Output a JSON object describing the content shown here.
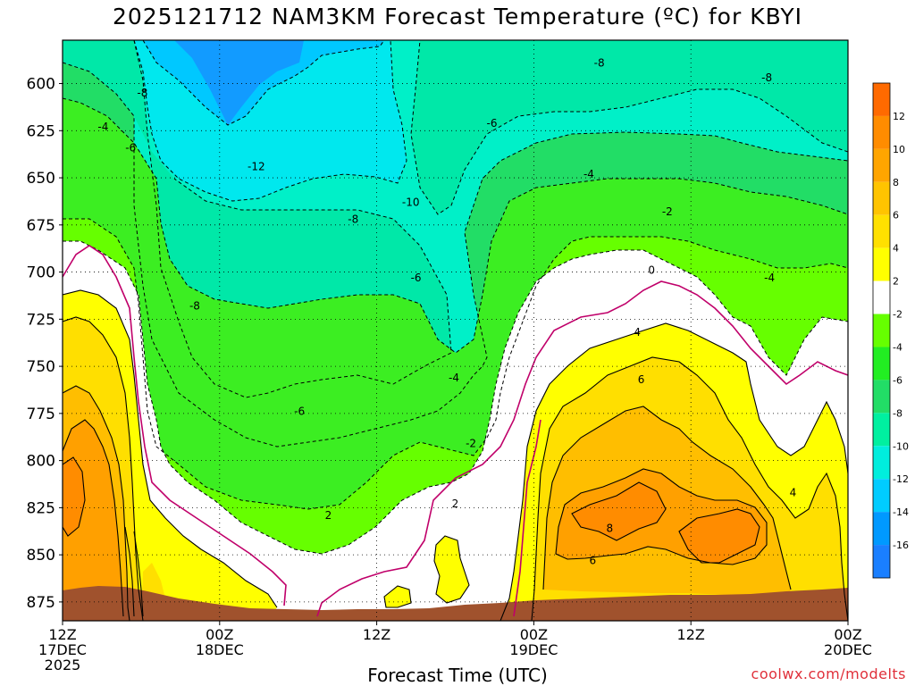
{
  "title": "2025121712 NAM3KM Forecast Temperature (ºC) for KBYI",
  "watermark": "coolwx.com/modelts",
  "chart_data": {
    "type": "heatmap",
    "title": "2025121712 NAM3KM Forecast Temperature (ºC) for KBYI",
    "xlabel": "Forecast Time (UTC)",
    "ylabel": "",
    "x_ticks": [
      {
        "hour": 0,
        "lines": [
          "12Z",
          "17DEC",
          "2025"
        ]
      },
      {
        "hour": 12,
        "lines": [
          "00Z",
          "18DEC"
        ]
      },
      {
        "hour": 24,
        "lines": [
          "12Z"
        ]
      },
      {
        "hour": 36,
        "lines": [
          "00Z",
          "19DEC"
        ]
      },
      {
        "hour": 48,
        "lines": [
          "12Z"
        ]
      },
      {
        "hour": 60,
        "lines": [
          "00Z",
          "20DEC"
        ]
      }
    ],
    "xlim_hours": [
      0,
      60
    ],
    "y_ticks": [
      600,
      625,
      650,
      675,
      700,
      725,
      750,
      775,
      800,
      825,
      850,
      875
    ],
    "ylim_hPa": [
      577,
      885
    ],
    "grid": true,
    "legend": "colorbar-right",
    "colorbar_labels": [
      "12",
      "10",
      "8",
      "6",
      "4",
      "2",
      "-2",
      "-4",
      "-6",
      "-8",
      "-10",
      "-12",
      "-14",
      "-16"
    ],
    "colorbar_colors": [
      "#ff6a00",
      "#ff8c00",
      "#ffa500",
      "#ffc400",
      "#ffe000",
      "#ffff00",
      "#ffffff",
      "#66ff00",
      "#22ee22",
      "#22dd66",
      "#00f0a0",
      "#00eedd",
      "#00ccff",
      "#0099ff",
      "#1a7fff"
    ],
    "ground_color": "#a0522d",
    "contour_labels": [
      {
        "text": "-8",
        "hour": 6.1,
        "p": 605
      },
      {
        "text": "-8",
        "hour": 41.0,
        "p": 589
      },
      {
        "text": "-8",
        "hour": 53.8,
        "p": 597
      },
      {
        "text": "-4",
        "hour": 3.1,
        "p": 623
      },
      {
        "text": "-6",
        "hour": 5.2,
        "p": 634
      },
      {
        "text": "-6",
        "hour": 32.8,
        "p": 621
      },
      {
        "text": "-12",
        "hour": 14.8,
        "p": 644
      },
      {
        "text": "-4",
        "hour": 40.2,
        "p": 648
      },
      {
        "text": "-10",
        "hour": 26.6,
        "p": 663
      },
      {
        "text": "-2",
        "hour": 46.2,
        "p": 668
      },
      {
        "text": "-8",
        "hour": 22.2,
        "p": 672
      },
      {
        "text": "0",
        "hour": 45.0,
        "p": 699
      },
      {
        "text": "-6",
        "hour": 27.0,
        "p": 703
      },
      {
        "text": "-4",
        "hour": 54.0,
        "p": 703
      },
      {
        "text": "-8",
        "hour": 10.1,
        "p": 718
      },
      {
        "text": "4",
        "hour": 43.9,
        "p": 732
      },
      {
        "text": "-4",
        "hour": 29.9,
        "p": 756
      },
      {
        "text": "6",
        "hour": 44.2,
        "p": 757
      },
      {
        "text": "-6",
        "hour": 18.1,
        "p": 774
      },
      {
        "text": "-2",
        "hour": 31.2,
        "p": 791
      },
      {
        "text": "2",
        "hour": 30.0,
        "p": 823
      },
      {
        "text": "2",
        "hour": 20.3,
        "p": 829
      },
      {
        "text": "4",
        "hour": 55.8,
        "p": 817
      },
      {
        "text": "8",
        "hour": 41.8,
        "p": 836
      },
      {
        "text": "6",
        "hour": 40.5,
        "p": 853
      }
    ]
  }
}
